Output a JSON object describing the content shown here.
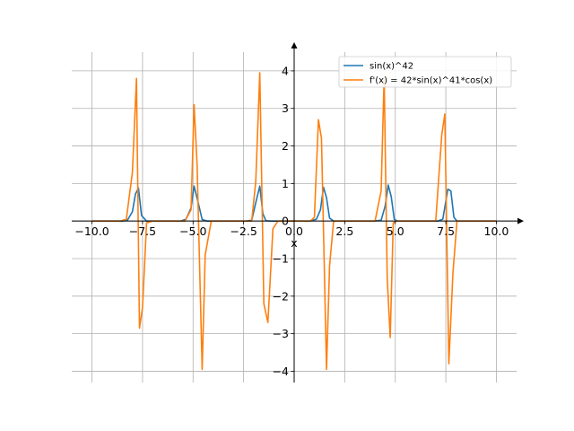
{
  "chart_data": {
    "type": "line",
    "xlabel": "x",
    "ylabel": "",
    "xlim": [
      -11,
      11
    ],
    "ylim": [
      -4.3,
      4.5
    ],
    "grid": true,
    "legend_position": "top-right",
    "xticks": [
      -10.0,
      -7.5,
      -5.0,
      -2.5,
      0.0,
      2.5,
      5.0,
      7.5,
      10.0
    ],
    "xtick_labels": [
      "−10.0",
      "−7.5",
      "−5.0",
      "−2.5",
      "0.0",
      "2.5",
      "5.0",
      "7.5",
      "10.0"
    ],
    "yticks": [
      -4,
      -3,
      -2,
      -1,
      0,
      1,
      2,
      3,
      4
    ],
    "ytick_labels": [
      "−4",
      "−3",
      "−2",
      "−1",
      "0",
      "1",
      "2",
      "3",
      "4"
    ],
    "series": [
      {
        "name": "sin(x)^42",
        "color": "#1f77b4",
        "x": [
          -10.0,
          -8.5,
          -8.25,
          -8.0,
          -7.85,
          -7.7,
          -7.55,
          -7.3,
          -7.0,
          -5.6,
          -5.35,
          -5.1,
          -4.95,
          -4.75,
          -4.55,
          -4.3,
          -4.0,
          -2.4,
          -2.1,
          -1.85,
          -1.7,
          -1.55,
          -1.4,
          -1.2,
          -0.9,
          0.0,
          0.8,
          1.1,
          1.3,
          1.45,
          1.6,
          1.75,
          1.95,
          2.3,
          3.9,
          4.3,
          4.5,
          4.65,
          4.8,
          4.95,
          5.1,
          5.4,
          7.1,
          7.35,
          7.6,
          7.75,
          7.9,
          8.05,
          8.25,
          8.6,
          10.0
        ],
        "y": [
          0.0,
          0.0,
          0.02,
          0.25,
          0.72,
          0.88,
          0.15,
          0.0,
          0.0,
          0.0,
          0.05,
          0.35,
          0.93,
          0.5,
          0.04,
          0.0,
          0.0,
          0.0,
          0.02,
          0.6,
          0.93,
          0.2,
          0.01,
          0.0,
          0.0,
          0.0,
          0.0,
          0.05,
          0.3,
          0.9,
          0.62,
          0.08,
          0.0,
          0.0,
          0.0,
          0.02,
          0.4,
          0.96,
          0.65,
          0.05,
          0.0,
          0.0,
          0.0,
          0.05,
          0.85,
          0.8,
          0.1,
          0.0,
          0.0,
          0.0,
          0.0
        ]
      },
      {
        "name": "f'(x) = 42*sin(x)^41*cos(x)",
        "color": "#ff7f0e",
        "x": [
          -10.0,
          -8.6,
          -8.3,
          -8.0,
          -7.8,
          -7.65,
          -7.5,
          -7.3,
          -7.0,
          -5.7,
          -5.4,
          -5.1,
          -4.95,
          -4.8,
          -4.55,
          -4.4,
          -4.1,
          -2.5,
          -2.1,
          -1.9,
          -1.7,
          -1.5,
          -1.3,
          -1.05,
          -0.8,
          0.0,
          0.8,
          1.0,
          1.2,
          1.35,
          1.6,
          1.75,
          1.95,
          2.2,
          4.0,
          4.3,
          4.45,
          4.6,
          4.75,
          4.9,
          5.05,
          5.3,
          7.0,
          7.3,
          7.45,
          7.65,
          7.85,
          8.05,
          8.3,
          8.6,
          10.0
        ],
        "y": [
          0.0,
          0.0,
          0.05,
          1.3,
          3.8,
          -2.85,
          -2.3,
          -0.05,
          0.0,
          0.0,
          0.0,
          0.3,
          3.1,
          1.5,
          -3.95,
          -0.9,
          0.0,
          0.0,
          0.0,
          1.05,
          3.95,
          -2.2,
          -2.7,
          -0.2,
          0.0,
          0.0,
          0.0,
          0.1,
          2.7,
          2.2,
          -3.95,
          -1.2,
          0.0,
          0.0,
          0.0,
          0.8,
          3.85,
          -1.5,
          -3.1,
          -0.05,
          0.0,
          0.0,
          0.0,
          2.3,
          2.85,
          -3.8,
          -1.4,
          0.0,
          0.0,
          0.0,
          0.0
        ]
      }
    ]
  }
}
